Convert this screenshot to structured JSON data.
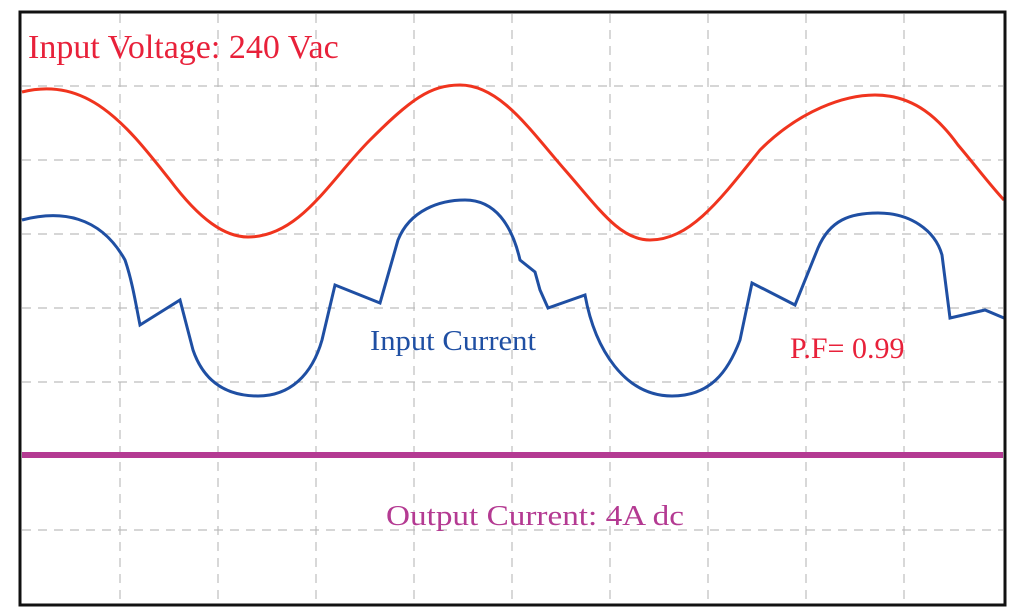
{
  "labels": {
    "voltage": "Input Voltage: 240 Vac",
    "current": "Input Current",
    "power_factor": "P.F= 0.99",
    "output": "Output Current: 4A dc"
  }
}
